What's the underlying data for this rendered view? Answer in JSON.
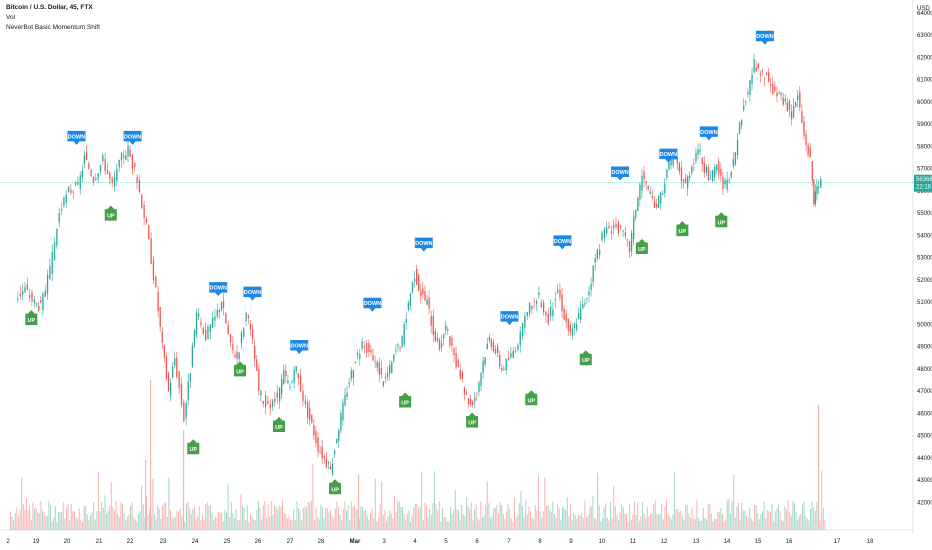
{
  "legend": {
    "symbol_line": "Bitcoin / U.S. Dollar, 45, FTX",
    "volume_label": "Vol",
    "indicator_label": "NeverBot Basic Momentum Shift"
  },
  "price_axis": {
    "currency": "USD",
    "current_price": "56368",
    "countdown": "22:18",
    "labels": [
      "64000",
      "63000",
      "62000",
      "61000",
      "60000",
      "59000",
      "58000",
      "57000",
      "56000",
      "55000",
      "54000",
      "53000",
      "52000",
      "51000",
      "50000",
      "49000",
      "48000",
      "47000",
      "46000",
      "45000",
      "44000",
      "43000",
      "42000"
    ]
  },
  "time_axis": {
    "labels": [
      "2",
      "19",
      "20",
      "21",
      "22",
      "23",
      "24",
      "25",
      "26",
      "27",
      "28",
      "Mar",
      "3",
      "4",
      "5",
      "6",
      "7",
      "8",
      "9",
      "10",
      "11",
      "12",
      "13",
      "14",
      "15",
      "16",
      "17",
      "18"
    ]
  },
  "colors": {
    "up": "#26a69a",
    "down": "#ef5350",
    "up_signal": "#43a047",
    "down_signal": "#1e88e5",
    "price_line": "#26a69a"
  },
  "chart_data": {
    "type": "candlestick",
    "ylim": [
      41300,
      64400
    ],
    "current_price": 56368,
    "price_path": [
      {
        "day": 18.4,
        "price": 51200
      },
      {
        "day": 18.7,
        "price": 51600
      },
      {
        "day": 19.0,
        "price": 51000
      },
      {
        "day": 19.2,
        "price": 50800
      },
      {
        "day": 19.5,
        "price": 52400
      },
      {
        "day": 19.8,
        "price": 55000
      },
      {
        "day": 20.1,
        "price": 56000
      },
      {
        "day": 20.4,
        "price": 56200
      },
      {
        "day": 20.6,
        "price": 57500
      },
      {
        "day": 20.9,
        "price": 56600
      },
      {
        "day": 21.2,
        "price": 57400
      },
      {
        "day": 21.5,
        "price": 56200
      },
      {
        "day": 21.8,
        "price": 57500
      },
      {
        "day": 22.0,
        "price": 57900
      },
      {
        "day": 22.3,
        "price": 56500
      },
      {
        "day": 22.6,
        "price": 54400
      },
      {
        "day": 22.9,
        "price": 51500
      },
      {
        "day": 23.1,
        "price": 49000
      },
      {
        "day": 23.3,
        "price": 47000
      },
      {
        "day": 23.5,
        "price": 48500
      },
      {
        "day": 23.8,
        "price": 45800
      },
      {
        "day": 24.0,
        "price": 48000
      },
      {
        "day": 24.2,
        "price": 50500
      },
      {
        "day": 24.5,
        "price": 49500
      },
      {
        "day": 24.8,
        "price": 50300
      },
      {
        "day": 25.0,
        "price": 51100
      },
      {
        "day": 25.3,
        "price": 49000
      },
      {
        "day": 25.5,
        "price": 48500
      },
      {
        "day": 25.8,
        "price": 50500
      },
      {
        "day": 26.0,
        "price": 49200
      },
      {
        "day": 26.2,
        "price": 47000
      },
      {
        "day": 26.5,
        "price": 46200
      },
      {
        "day": 26.8,
        "price": 46700
      },
      {
        "day": 27.0,
        "price": 47800
      },
      {
        "day": 27.2,
        "price": 47200
      },
      {
        "day": 27.4,
        "price": 48000
      },
      {
        "day": 27.7,
        "price": 46300
      },
      {
        "day": 27.9,
        "price": 45500
      },
      {
        "day": 28.1,
        "price": 44500
      },
      {
        "day": 28.3,
        "price": 44000
      },
      {
        "day": 28.5,
        "price": 43400
      },
      {
        "day": 28.7,
        "price": 45000
      },
      {
        "day": 28.9,
        "price": 46300
      },
      {
        "day": 29.1,
        "price": 47500
      },
      {
        "day": 29.3,
        "price": 48500
      },
      {
        "day": 29.6,
        "price": 49200
      },
      {
        "day": 29.8,
        "price": 48500
      },
      {
        "day": 30.0,
        "price": 48200
      },
      {
        "day": 30.2,
        "price": 47400
      },
      {
        "day": 30.4,
        "price": 48000
      },
      {
        "day": 30.6,
        "price": 48800
      },
      {
        "day": 30.8,
        "price": 49300
      },
      {
        "day": 31.0,
        "price": 51000
      },
      {
        "day": 31.2,
        "price": 52300
      },
      {
        "day": 31.4,
        "price": 51400
      },
      {
        "day": 31.6,
        "price": 51000
      },
      {
        "day": 31.8,
        "price": 49700
      },
      {
        "day": 32.0,
        "price": 49000
      },
      {
        "day": 32.2,
        "price": 49900
      },
      {
        "day": 32.4,
        "price": 48800
      },
      {
        "day": 32.6,
        "price": 47900
      },
      {
        "day": 32.8,
        "price": 47000
      },
      {
        "day": 33.0,
        "price": 46400
      },
      {
        "day": 33.2,
        "price": 47000
      },
      {
        "day": 33.4,
        "price": 48400
      },
      {
        "day": 33.6,
        "price": 49400
      },
      {
        "day": 33.8,
        "price": 48800
      },
      {
        "day": 34.0,
        "price": 48000
      },
      {
        "day": 34.3,
        "price": 48600
      },
      {
        "day": 34.6,
        "price": 49500
      },
      {
        "day": 34.9,
        "price": 50800
      },
      {
        "day": 35.2,
        "price": 51200
      },
      {
        "day": 35.5,
        "price": 50200
      },
      {
        "day": 35.8,
        "price": 51600
      },
      {
        "day": 36.0,
        "price": 50400
      },
      {
        "day": 36.2,
        "price": 49500
      },
      {
        "day": 36.4,
        "price": 50200
      },
      {
        "day": 36.6,
        "price": 50800
      },
      {
        "day": 36.8,
        "price": 51600
      },
      {
        "day": 37.0,
        "price": 53000
      },
      {
        "day": 37.3,
        "price": 54200
      },
      {
        "day": 37.6,
        "price": 54500
      },
      {
        "day": 37.9,
        "price": 54000
      },
      {
        "day": 38.1,
        "price": 53400
      },
      {
        "day": 38.3,
        "price": 55300
      },
      {
        "day": 38.5,
        "price": 56700
      },
      {
        "day": 38.7,
        "price": 56000
      },
      {
        "day": 38.9,
        "price": 55200
      },
      {
        "day": 39.1,
        "price": 55800
      },
      {
        "day": 39.3,
        "price": 56800
      },
      {
        "day": 39.5,
        "price": 57600
      },
      {
        "day": 39.7,
        "price": 56800
      },
      {
        "day": 39.9,
        "price": 56300
      },
      {
        "day": 40.1,
        "price": 57200
      },
      {
        "day": 40.3,
        "price": 58000
      },
      {
        "day": 40.5,
        "price": 57000
      },
      {
        "day": 40.7,
        "price": 56500
      },
      {
        "day": 40.9,
        "price": 57200
      },
      {
        "day": 41.1,
        "price": 56200
      },
      {
        "day": 41.3,
        "price": 56400
      },
      {
        "day": 41.5,
        "price": 57800
      },
      {
        "day": 41.7,
        "price": 59400
      },
      {
        "day": 41.9,
        "price": 60500
      },
      {
        "day": 42.1,
        "price": 61700
      },
      {
        "day": 42.3,
        "price": 61200
      },
      {
        "day": 42.5,
        "price": 61100
      },
      {
        "day": 42.7,
        "price": 60500
      },
      {
        "day": 42.9,
        "price": 60300
      },
      {
        "day": 43.1,
        "price": 60000
      },
      {
        "day": 43.3,
        "price": 59400
      },
      {
        "day": 43.5,
        "price": 60300
      },
      {
        "day": 43.7,
        "price": 58500
      },
      {
        "day": 43.9,
        "price": 57400
      },
      {
        "day": 44.0,
        "price": 55500
      },
      {
        "day": 44.1,
        "price": 56000
      },
      {
        "day": 44.25,
        "price": 56368
      }
    ],
    "signals": [
      {
        "type": "UP",
        "day": 18.85,
        "price": 51000
      },
      {
        "type": "DOWN",
        "day": 20.3,
        "price": 57800
      },
      {
        "type": "UP",
        "day": 21.4,
        "price": 55700
      },
      {
        "type": "DOWN",
        "day": 22.1,
        "price": 57800
      },
      {
        "type": "UP",
        "day": 24.05,
        "price": 45200
      },
      {
        "type": "DOWN",
        "day": 24.85,
        "price": 51000
      },
      {
        "type": "UP",
        "day": 25.55,
        "price": 48700
      },
      {
        "type": "DOWN",
        "day": 25.95,
        "price": 50800
      },
      {
        "type": "UP",
        "day": 26.8,
        "price": 46200
      },
      {
        "type": "DOWN",
        "day": 27.45,
        "price": 48400
      },
      {
        "type": "UP",
        "day": 28.6,
        "price": 43400
      },
      {
        "type": "DOWN",
        "day": 29.8,
        "price": 50300
      },
      {
        "type": "UP",
        "day": 30.85,
        "price": 47300
      },
      {
        "type": "DOWN",
        "day": 31.45,
        "price": 53000
      },
      {
        "type": "UP",
        "day": 33.0,
        "price": 46400
      },
      {
        "type": "DOWN",
        "day": 34.2,
        "price": 49700
      },
      {
        "type": "UP",
        "day": 34.9,
        "price": 47400
      },
      {
        "type": "DOWN",
        "day": 35.9,
        "price": 53100
      },
      {
        "type": "UP",
        "day": 36.65,
        "price": 49200
      },
      {
        "type": "DOWN",
        "day": 37.75,
        "price": 56200
      },
      {
        "type": "UP",
        "day": 38.45,
        "price": 54200
      },
      {
        "type": "DOWN",
        "day": 39.3,
        "price": 57000
      },
      {
        "type": "UP",
        "day": 39.75,
        "price": 55000
      },
      {
        "type": "DOWN",
        "day": 40.6,
        "price": 58000
      },
      {
        "type": "UP",
        "day": 41.0,
        "price": 55400
      },
      {
        "type": "DOWN",
        "day": 42.4,
        "price": 62300
      }
    ]
  }
}
